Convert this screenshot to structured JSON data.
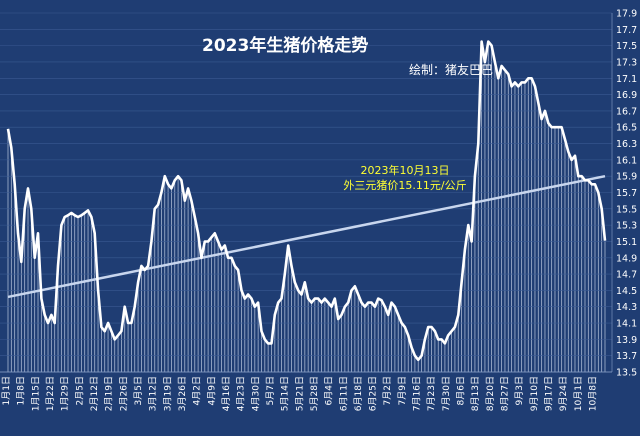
{
  "chart_data": {
    "type": "line",
    "title": "2023年生猪价格走势",
    "subtitle": "绘制：猪友巴巴",
    "annotation": {
      "lines": [
        "2023年10月13日",
        "外三元猪价15.11元/公斤"
      ],
      "color": "#ffff33"
    },
    "ylim": [
      13.5,
      17.9
    ],
    "yticks": [
      13.5,
      13.7,
      13.9,
      14.1,
      14.3,
      14.5,
      14.7,
      14.9,
      15.1,
      15.3,
      15.5,
      15.7,
      15.9,
      16.1,
      16.3,
      16.5,
      16.7,
      16.9,
      17.1,
      17.3,
      17.5,
      17.7,
      17.9
    ],
    "ytick_labels": [
      "13.5",
      "13.7",
      "13.9",
      "14.1",
      "14.3",
      "14.5",
      "14.7",
      "14.9",
      "15.1",
      "15.3",
      "15.5",
      "15.7",
      "15.9",
      "16.1",
      "16.3",
      "16.5",
      "16.7",
      "16.9",
      "17.1",
      "17.3",
      "17.5",
      "17.7",
      "17.9"
    ],
    "x_count": 286,
    "xtick_labels": [
      "1月1日",
      "1月8日",
      "1月15日",
      "1月22日",
      "1月29日",
      "2月5日",
      "2月12日",
      "2月19日",
      "2月26日",
      "3月5日",
      "3月12日",
      "3月19日",
      "3月26日",
      "4月2日",
      "4月9日",
      "4月16日",
      "4月23日",
      "4月30日",
      "5月7日",
      "5月14日",
      "5月21日",
      "5月28日",
      "6月4日",
      "6月11日",
      "6月18日",
      "6月25日",
      "7月2日",
      "7月9日",
      "7月16日",
      "7月23日",
      "7月30日",
      "8月6日",
      "8月13日",
      "8月20日",
      "8月27日",
      "9月3日",
      "9月10日",
      "9月17日",
      "9月24日",
      "10月1日",
      "10月8日"
    ],
    "xtick_positions": [
      0,
      7,
      14,
      21,
      28,
      35,
      42,
      49,
      56,
      63,
      70,
      77,
      84,
      91,
      98,
      105,
      112,
      119,
      126,
      133,
      140,
      147,
      154,
      161,
      168,
      175,
      182,
      189,
      196,
      203,
      210,
      217,
      224,
      231,
      238,
      245,
      252,
      259,
      266,
      273,
      280
    ],
    "keypoints": [
      [
        0,
        16.48
      ],
      [
        1,
        16.25
      ],
      [
        2,
        15.8
      ],
      [
        3,
        15.2
      ],
      [
        4,
        14.85
      ],
      [
        5,
        15.5
      ],
      [
        6,
        15.75
      ],
      [
        7,
        15.5
      ],
      [
        8,
        14.9
      ],
      [
        9,
        15.2
      ],
      [
        10,
        14.4
      ],
      [
        11,
        14.2
      ],
      [
        12,
        14.1
      ],
      [
        13,
        14.2
      ],
      [
        14,
        14.1
      ],
      [
        15,
        14.8
      ],
      [
        16,
        15.3
      ],
      [
        17,
        15.4
      ],
      [
        18,
        15.42
      ],
      [
        19,
        15.45
      ],
      [
        20,
        15.42
      ],
      [
        21,
        15.4
      ],
      [
        22,
        15.42
      ],
      [
        23,
        15.45
      ],
      [
        24,
        15.48
      ],
      [
        25,
        15.4
      ],
      [
        26,
        15.2
      ],
      [
        27,
        14.5
      ],
      [
        28,
        14.05
      ],
      [
        29,
        14.0
      ],
      [
        30,
        14.1
      ],
      [
        31,
        14.0
      ],
      [
        32,
        13.9
      ],
      [
        33,
        13.95
      ],
      [
        34,
        14.0
      ],
      [
        35,
        14.3
      ],
      [
        36,
        14.1
      ],
      [
        37,
        14.1
      ],
      [
        38,
        14.3
      ],
      [
        39,
        14.6
      ],
      [
        40,
        14.8
      ],
      [
        41,
        14.75
      ],
      [
        42,
        14.8
      ],
      [
        43,
        15.1
      ],
      [
        44,
        15.5
      ],
      [
        45,
        15.55
      ],
      [
        46,
        15.7
      ],
      [
        47,
        15.9
      ],
      [
        48,
        15.8
      ],
      [
        49,
        15.75
      ],
      [
        50,
        15.85
      ],
      [
        51,
        15.9
      ],
      [
        52,
        15.85
      ],
      [
        53,
        15.6
      ],
      [
        54,
        15.75
      ],
      [
        55,
        15.6
      ],
      [
        56,
        15.4
      ],
      [
        57,
        15.2
      ],
      [
        58,
        14.9
      ],
      [
        59,
        15.1
      ],
      [
        60,
        15.1
      ],
      [
        61,
        15.15
      ],
      [
        62,
        15.2
      ],
      [
        63,
        15.1
      ],
      [
        64,
        15.0
      ],
      [
        65,
        15.05
      ],
      [
        66,
        14.9
      ],
      [
        67,
        14.9
      ],
      [
        68,
        14.8
      ],
      [
        69,
        14.75
      ],
      [
        70,
        14.5
      ],
      [
        71,
        14.4
      ],
      [
        72,
        14.45
      ],
      [
        73,
        14.4
      ],
      [
        74,
        14.3
      ],
      [
        75,
        14.35
      ],
      [
        76,
        14.0
      ],
      [
        77,
        13.9
      ],
      [
        78,
        13.85
      ],
      [
        79,
        13.85
      ],
      [
        80,
        14.2
      ],
      [
        81,
        14.35
      ],
      [
        82,
        14.4
      ],
      [
        83,
        14.7
      ],
      [
        84,
        15.05
      ],
      [
        85,
        14.8
      ],
      [
        86,
        14.6
      ],
      [
        87,
        14.5
      ],
      [
        88,
        14.45
      ],
      [
        89,
        14.6
      ],
      [
        90,
        14.4
      ],
      [
        91,
        14.35
      ],
      [
        92,
        14.4
      ],
      [
        93,
        14.4
      ],
      [
        94,
        14.35
      ],
      [
        95,
        14.4
      ],
      [
        96,
        14.35
      ],
      [
        97,
        14.3
      ],
      [
        98,
        14.4
      ],
      [
        99,
        14.15
      ],
      [
        100,
        14.2
      ],
      [
        101,
        14.3
      ],
      [
        102,
        14.35
      ],
      [
        103,
        14.5
      ],
      [
        104,
        14.55
      ],
      [
        105,
        14.45
      ],
      [
        106,
        14.35
      ],
      [
        107,
        14.3
      ],
      [
        108,
        14.35
      ],
      [
        109,
        14.35
      ],
      [
        110,
        14.3
      ],
      [
        111,
        14.4
      ],
      [
        112,
        14.38
      ],
      [
        113,
        14.3
      ],
      [
        114,
        14.2
      ],
      [
        115,
        14.35
      ],
      [
        116,
        14.3
      ],
      [
        117,
        14.2
      ],
      [
        118,
        14.1
      ],
      [
        119,
        14.05
      ],
      [
        120,
        13.95
      ],
      [
        121,
        13.8
      ],
      [
        122,
        13.7
      ],
      [
        123,
        13.65
      ],
      [
        124,
        13.7
      ],
      [
        125,
        13.9
      ],
      [
        126,
        14.05
      ],
      [
        127,
        14.05
      ],
      [
        128,
        14.0
      ],
      [
        129,
        13.9
      ],
      [
        130,
        13.9
      ],
      [
        131,
        13.85
      ],
      [
        132,
        13.95
      ],
      [
        133,
        14.0
      ],
      [
        134,
        14.05
      ],
      [
        135,
        14.2
      ],
      [
        136,
        14.6
      ],
      [
        137,
        15.0
      ],
      [
        138,
        15.3
      ],
      [
        139,
        15.1
      ],
      [
        140,
        15.9
      ],
      [
        141,
        16.3
      ],
      [
        142,
        17.55
      ],
      [
        143,
        17.3
      ],
      [
        144,
        17.55
      ],
      [
        145,
        17.5
      ],
      [
        146,
        17.3
      ],
      [
        147,
        17.1
      ],
      [
        148,
        17.25
      ],
      [
        149,
        17.2
      ],
      [
        150,
        17.15
      ],
      [
        151,
        17.0
      ],
      [
        152,
        17.05
      ],
      [
        153,
        17.0
      ],
      [
        154,
        17.05
      ],
      [
        155,
        17.05
      ],
      [
        156,
        17.1
      ],
      [
        157,
        17.1
      ],
      [
        158,
        17.0
      ],
      [
        159,
        16.8
      ],
      [
        160,
        16.6
      ],
      [
        161,
        16.7
      ],
      [
        162,
        16.55
      ],
      [
        163,
        16.5
      ],
      [
        164,
        16.5
      ],
      [
        165,
        16.5
      ],
      [
        166,
        16.5
      ],
      [
        167,
        16.35
      ],
      [
        168,
        16.2
      ],
      [
        169,
        16.1
      ],
      [
        170,
        16.15
      ],
      [
        171,
        15.9
      ],
      [
        172,
        15.9
      ],
      [
        173,
        15.85
      ],
      [
        174,
        15.85
      ],
      [
        175,
        15.8
      ],
      [
        176,
        15.8
      ],
      [
        177,
        15.7
      ],
      [
        178,
        15.5
      ],
      [
        179,
        15.11
      ]
    ],
    "trendline": {
      "start": 14.42,
      "end": 15.9
    },
    "grid": "vertical",
    "colors": {
      "background": "#1f3d73",
      "line": "#ffffff",
      "trend": "#c8d6ee",
      "annotation": "#ffff33"
    }
  }
}
